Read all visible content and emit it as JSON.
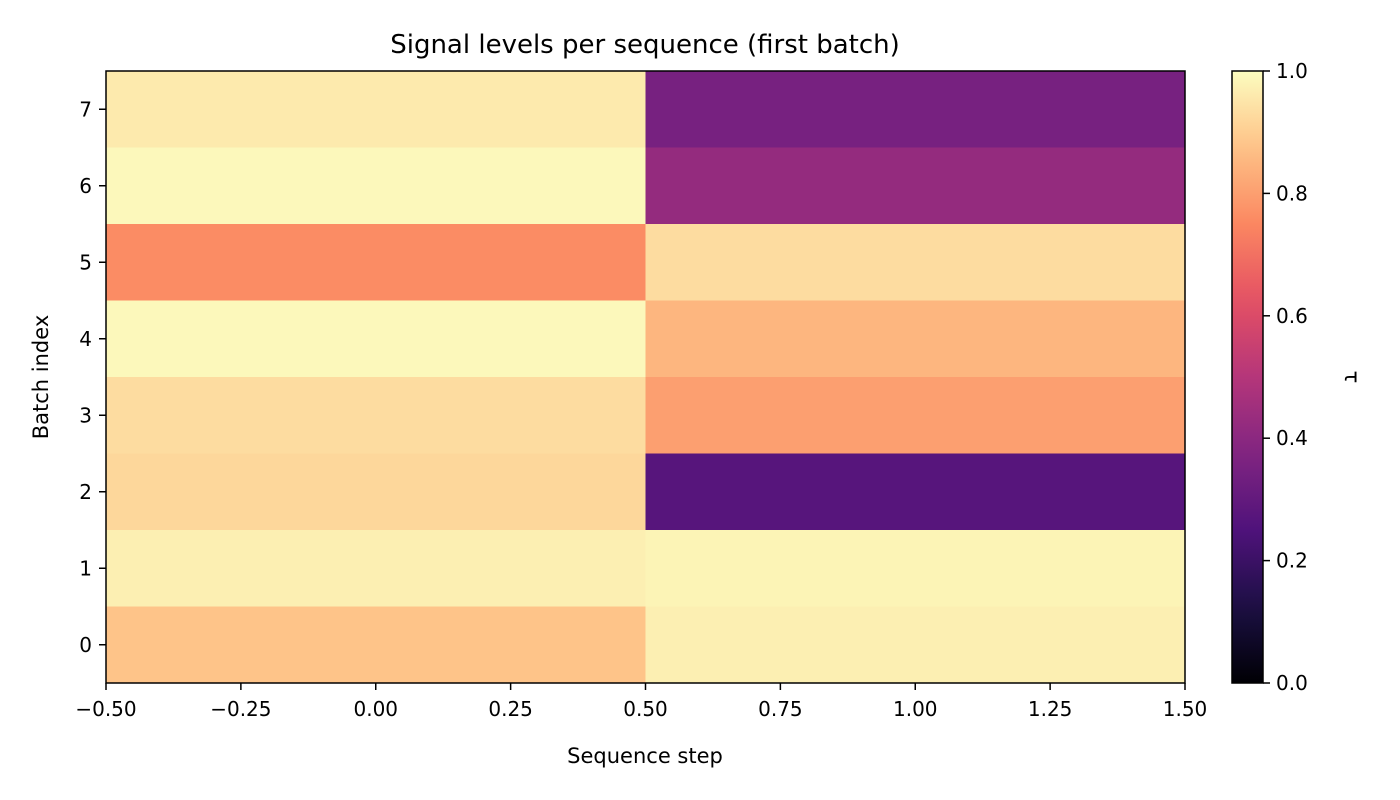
{
  "chart_data": {
    "type": "heatmap",
    "title": "Signal levels per sequence (first batch)",
    "xlabel": "Sequence step",
    "ylabel": "Batch index",
    "colorbar_label": "τ",
    "colormap": "magma",
    "xlim": [
      -0.5,
      1.5
    ],
    "ylim": [
      -0.5,
      7.5
    ],
    "x": [
      0,
      1
    ],
    "y": [
      0,
      1,
      2,
      3,
      4,
      5,
      6,
      7
    ],
    "x_ticks": [
      -0.5,
      -0.25,
      0.0,
      0.25,
      0.5,
      0.75,
      1.0,
      1.25,
      1.5
    ],
    "x_tick_labels": [
      "−0.50",
      "−0.25",
      "0.00",
      "0.25",
      "0.50",
      "0.75",
      "1.00",
      "1.25",
      "1.50"
    ],
    "y_ticks": [
      0,
      1,
      2,
      3,
      4,
      5,
      6,
      7
    ],
    "y_tick_labels": [
      "0",
      "1",
      "2",
      "3",
      "4",
      "5",
      "6",
      "7"
    ],
    "colorbar_range": [
      0.0,
      1.0
    ],
    "colorbar_ticks": [
      0.0,
      0.2,
      0.4,
      0.6,
      0.8,
      1.0
    ],
    "colorbar_tick_labels": [
      "0.0",
      "0.2",
      "0.4",
      "0.6",
      "0.8",
      "1.0"
    ],
    "values": [
      [
        0.88,
        0.97
      ],
      [
        0.97,
        0.98
      ],
      [
        0.92,
        0.27
      ],
      [
        0.93,
        0.8
      ],
      [
        0.99,
        0.85
      ],
      [
        0.76,
        0.93
      ],
      [
        0.99,
        0.42
      ],
      [
        0.96,
        0.35
      ]
    ]
  }
}
